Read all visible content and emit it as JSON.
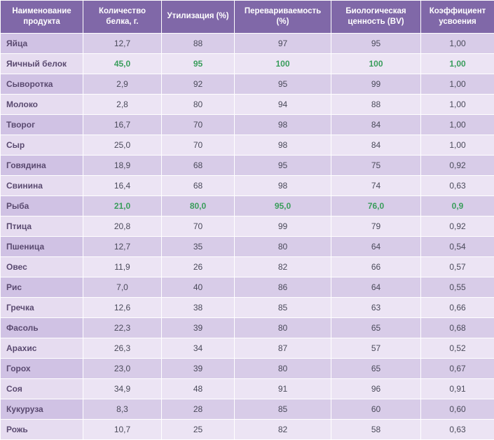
{
  "table": {
    "columns": [
      "Наименование продукта",
      "Количество белка, г.",
      "Утилизация (%)",
      "Перевариваемость (%)",
      "Биологическая ценность (BV)",
      "Коэффициент усвоения"
    ],
    "rows": [
      {
        "name": "Яйца",
        "vals": [
          "12,7",
          "88",
          "97",
          "95",
          "1,00"
        ],
        "hl": false
      },
      {
        "name": "Яичный белок",
        "vals": [
          "45,0",
          "95",
          "100",
          "100",
          "1,00"
        ],
        "hl": true
      },
      {
        "name": "Сыворотка",
        "vals": [
          "2,9",
          "92",
          "95",
          "99",
          "1,00"
        ],
        "hl": false
      },
      {
        "name": "Молоко",
        "vals": [
          "2,8",
          "80",
          "94",
          "88",
          "1,00"
        ],
        "hl": false
      },
      {
        "name": "Творог",
        "vals": [
          "16,7",
          "70",
          "98",
          "84",
          "1,00"
        ],
        "hl": false
      },
      {
        "name": "Сыр",
        "vals": [
          "25,0",
          "70",
          "98",
          "84",
          "1,00"
        ],
        "hl": false
      },
      {
        "name": "Говядина",
        "vals": [
          "18,9",
          "68",
          "95",
          "75",
          "0,92"
        ],
        "hl": false
      },
      {
        "name": "Свинина",
        "vals": [
          "16,4",
          "68",
          "98",
          "74",
          "0,63"
        ],
        "hl": false
      },
      {
        "name": "Рыба",
        "vals": [
          "21,0",
          "80,0",
          "95,0",
          "76,0",
          "0,9"
        ],
        "hl": true
      },
      {
        "name": "Птица",
        "vals": [
          "20,8",
          "70",
          "99",
          "79",
          "0,92"
        ],
        "hl": false
      },
      {
        "name": "Пшеница",
        "vals": [
          "12,7",
          "35",
          "80",
          "64",
          "0,54"
        ],
        "hl": false
      },
      {
        "name": "Овес",
        "vals": [
          "11,9",
          "26",
          "82",
          "66",
          "0,57"
        ],
        "hl": false
      },
      {
        "name": "Рис",
        "vals": [
          "7,0",
          "40",
          "86",
          "64",
          "0,55"
        ],
        "hl": false
      },
      {
        "name": "Гречка",
        "vals": [
          "12,6",
          "38",
          "85",
          "63",
          "0,66"
        ],
        "hl": false
      },
      {
        "name": "Фасоль",
        "vals": [
          "22,3",
          "39",
          "80",
          "65",
          "0,68"
        ],
        "hl": false
      },
      {
        "name": "Арахис",
        "vals": [
          "26,3",
          "34",
          "87",
          "57",
          "0,52"
        ],
        "hl": false
      },
      {
        "name": "Горох",
        "vals": [
          "23,0",
          "39",
          "80",
          "65",
          "0,67"
        ],
        "hl": false
      },
      {
        "name": "Соя",
        "vals": [
          "34,9",
          "48",
          "91",
          "96",
          "0,91"
        ],
        "hl": false
      },
      {
        "name": "Кукуруза",
        "vals": [
          "8,3",
          "28",
          "85",
          "60",
          "0,60"
        ],
        "hl": false
      },
      {
        "name": "Рожь",
        "vals": [
          "10,7",
          "25",
          "82",
          "58",
          "0,63"
        ],
        "hl": false
      }
    ],
    "colors": {
      "header_bg": "#8068a8",
      "header_text": "#ffffff",
      "row_odd_bg": "#d8cce8",
      "row_even_bg": "#ece4f4",
      "name_odd_bg": "#d0c2e4",
      "name_even_bg": "#e6dcf0",
      "text": "#4a4a5a",
      "name_text": "#5a4a70",
      "highlight_text": "#3a9d5c",
      "border": "#ffffff"
    },
    "font_size_header": 11.5,
    "font_size_body": 12
  }
}
